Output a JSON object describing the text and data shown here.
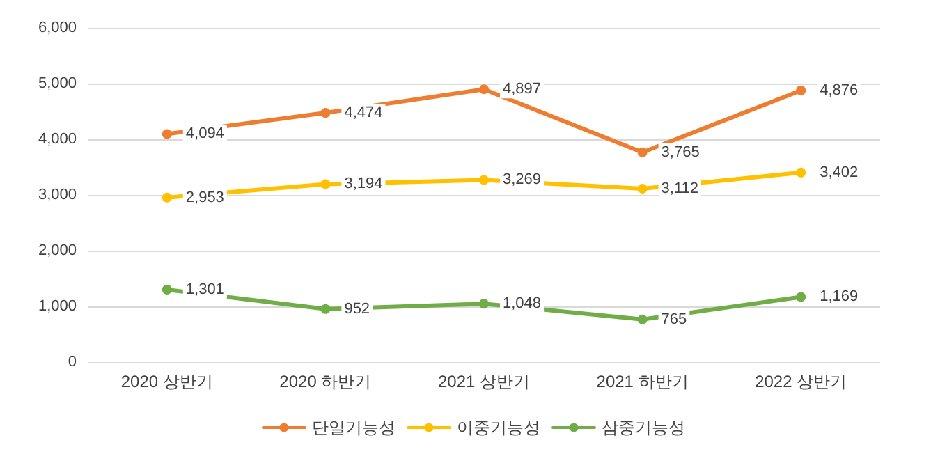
{
  "chart_data": {
    "type": "line",
    "categories": [
      "2020 상반기",
      "2020 하반기",
      "2021 상반기",
      "2021 하반기",
      "2022 상반기"
    ],
    "series": [
      {
        "name": "단일기능성",
        "color": "#ed7d31",
        "values": [
          4094,
          4474,
          4897,
          3765,
          4876
        ],
        "value_labels": [
          "4,094",
          "4,474",
          "4,897",
          "3,765",
          "4,876"
        ]
      },
      {
        "name": "이중기능성",
        "color": "#ffc000",
        "values": [
          2953,
          3194,
          3269,
          3112,
          3402
        ],
        "value_labels": [
          "2,953",
          "3,194",
          "3,269",
          "3,112",
          "3,402"
        ]
      },
      {
        "name": "삼중기능성",
        "color": "#70ad47",
        "values": [
          1301,
          952,
          1048,
          765,
          1169
        ],
        "value_labels": [
          "1,301",
          "952",
          "1,048",
          "765",
          "1,169"
        ]
      }
    ],
    "ylim": [
      0,
      6000
    ],
    "yticks": [
      {
        "value": 0,
        "label": "0"
      },
      {
        "value": 1000,
        "label": "1,000"
      },
      {
        "value": 2000,
        "label": "2,000"
      },
      {
        "value": 3000,
        "label": "3,000"
      },
      {
        "value": 4000,
        "label": "4,000"
      },
      {
        "value": 5000,
        "label": "5,000"
      },
      {
        "value": 6000,
        "label": "6,000"
      }
    ],
    "grid": "y",
    "legend": "bottom",
    "marker": "circle",
    "line_style": "solid"
  }
}
